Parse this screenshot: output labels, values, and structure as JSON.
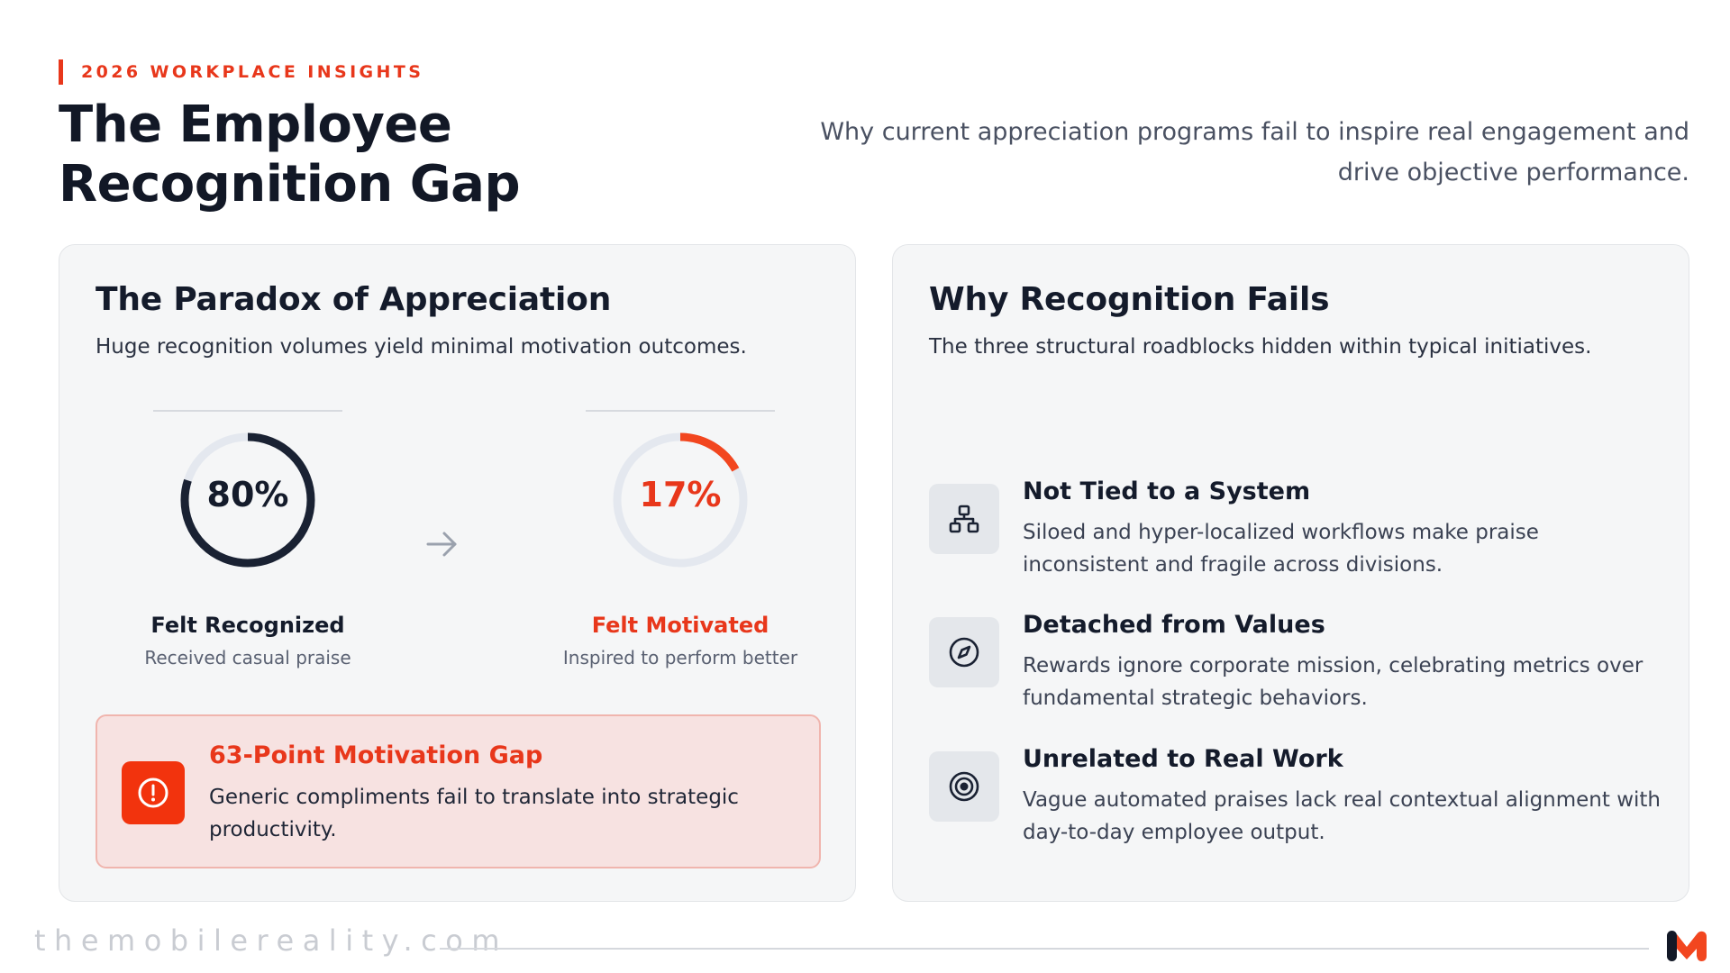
{
  "header": {
    "eyebrow": "2026 WORKPLACE INSIGHTS",
    "title": "The Employee Recognition Gap",
    "subtitle": "Why current appreciation programs fail to inspire real engagement and drive objective performance."
  },
  "paradox": {
    "title": "The Paradox of Appreciation",
    "subtitle": "Huge recognition volumes yield minimal motivation outcomes.",
    "stats": [
      {
        "value_text": "80%",
        "value": 80,
        "label": "Felt Recognized",
        "description": "Received casual praise",
        "color": "#1a2233"
      },
      {
        "value_text": "17%",
        "value": 17,
        "label": "Felt Motivated",
        "description": "Inspired to perform better",
        "color": "#f2461f"
      }
    ],
    "ring_track_color": "#e4e8ef",
    "arrow_icon": "arrow-right-icon",
    "alert": {
      "icon": "alert-circle-icon",
      "title": "63-Point Motivation Gap",
      "text": "Generic compliments fail to translate into strategic productivity."
    }
  },
  "reasons": {
    "title": "Why Recognition Fails",
    "subtitle": "The three structural roadblocks hidden within typical initiatives.",
    "items": [
      {
        "icon": "hierarchy-icon",
        "title": "Not Tied to a System",
        "text": "Siloed and hyper-localized workflows make praise inconsistent and fragile across divisions."
      },
      {
        "icon": "compass-icon",
        "title": "Detached from Values",
        "text": "Rewards ignore corporate mission, celebrating metrics over fundamental strategic behaviors."
      },
      {
        "icon": "target-icon",
        "title": "Unrelated to Real Work",
        "text": "Vague automated praises lack real contextual alignment with day-to-day employee output."
      }
    ]
  },
  "footer": {
    "site": "themobilereality.com",
    "logo_icon": "brand-logo-icon"
  },
  "colors": {
    "accent": "#e8371b",
    "dark": "#141b2b"
  }
}
